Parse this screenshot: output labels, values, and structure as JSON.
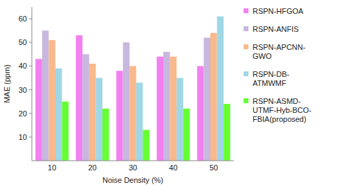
{
  "chart_data": {
    "type": "bar",
    "x_label": "Noise Density (%)",
    "y_label": "MAE (ppm)",
    "categories": [
      "10",
      "20",
      "30",
      "40",
      "50"
    ],
    "series": [
      {
        "name": "RSPN-HFGOA",
        "color": "#f380f0",
        "values": [
          43,
          53,
          38,
          44,
          40
        ]
      },
      {
        "name": "RSPN-ANFIS",
        "color": "#c8b7de",
        "values": [
          55,
          45,
          50,
          46,
          52
        ]
      },
      {
        "name": "RSPN-APCNN-GWO",
        "color": "#f9b98c",
        "values": [
          51,
          41,
          40,
          44,
          54
        ]
      },
      {
        "name": "RSPN-DB-ATMWMF",
        "color": "#9fd7e6",
        "values": [
          39,
          35,
          33,
          35,
          61
        ]
      },
      {
        "name": "RSPN-ASMD-UTMF-Hyb-BCO-FBIA(proposed)",
        "color": "#66ff33",
        "values": [
          25,
          22,
          13,
          22,
          24
        ]
      }
    ],
    "ylim": [
      0,
      65
    ],
    "yticks": [
      10,
      20,
      30,
      40,
      50,
      60
    ],
    "grid": false,
    "legend": "right"
  }
}
